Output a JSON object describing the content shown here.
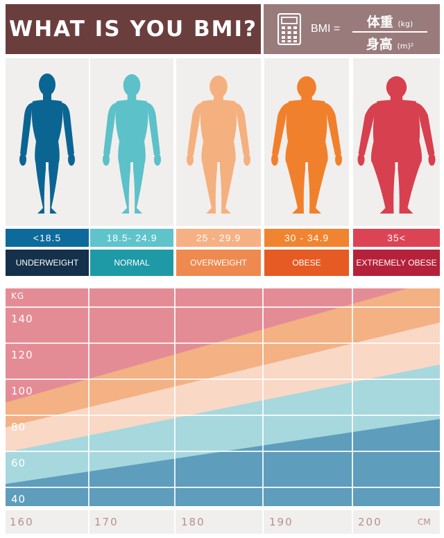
{
  "header": {
    "title": "WHAT IS YOU BMI?",
    "formula": {
      "bmi": "BMI =",
      "numerator": "体重",
      "numerator_unit": "(kg)",
      "denominator": "身高",
      "denominator_unit": "(m)²"
    }
  },
  "categories": [
    {
      "range": "<18.5",
      "label": "UNDERWEIGHT",
      "figure_color": "#0b6593",
      "range_color": "#0d6a9b",
      "label_color": "#14304a"
    },
    {
      "range": "18.5- 24.9",
      "label": "NORMAL",
      "figure_color": "#5cc1c9",
      "range_color": "#5fc3cb",
      "label_color": "#1d9aa6"
    },
    {
      "range": "25 - 29.9",
      "label": "OVERWEIGHT",
      "figure_color": "#f5b07f",
      "range_color": "#f5b184",
      "label_color": "#ee8a4f"
    },
    {
      "range": "30 - 34.9",
      "label": "OBESE",
      "figure_color": "#f1802d",
      "range_color": "#f18430",
      "label_color": "#e65a23"
    },
    {
      "range": "35<",
      "label": "EXTREMELY OBESE",
      "figure_color": "#d7404f",
      "range_color": "#dc4455",
      "label_color": "#b5213a"
    }
  ],
  "chart_data": {
    "type": "area",
    "xlabel": "CM",
    "ylabel": "KG",
    "x_ticks": [
      "160",
      "170",
      "180",
      "190",
      "200"
    ],
    "y_ticks": [
      "140",
      "120",
      "100",
      "80",
      "60",
      "40"
    ],
    "xlim": [
      160,
      209
    ],
    "ylim": [
      36,
      148
    ],
    "bands": [
      {
        "name": "UNDERWEIGHT",
        "color": "#5e9dbc",
        "upper_boundary": [
          [
            160,
            47.4
          ],
          [
            209,
            80.8
          ]
        ]
      },
      {
        "name": "NORMAL",
        "color": "#a6d8de",
        "upper_boundary": [
          [
            160,
            63.7
          ],
          [
            209,
            108.8
          ]
        ]
      },
      {
        "name": "OVERWEIGHT",
        "color": "#f9d8c6",
        "upper_boundary": [
          [
            160,
            76.5
          ],
          [
            209,
            130.5
          ]
        ]
      },
      {
        "name": "OBESE",
        "color": "#f3b184",
        "upper_boundary": [
          [
            160,
            89.3
          ],
          [
            209,
            152.8
          ]
        ]
      },
      {
        "name": "EXTREMELY OBESE",
        "color": "#e48c95",
        "upper_boundary": null
      }
    ]
  }
}
